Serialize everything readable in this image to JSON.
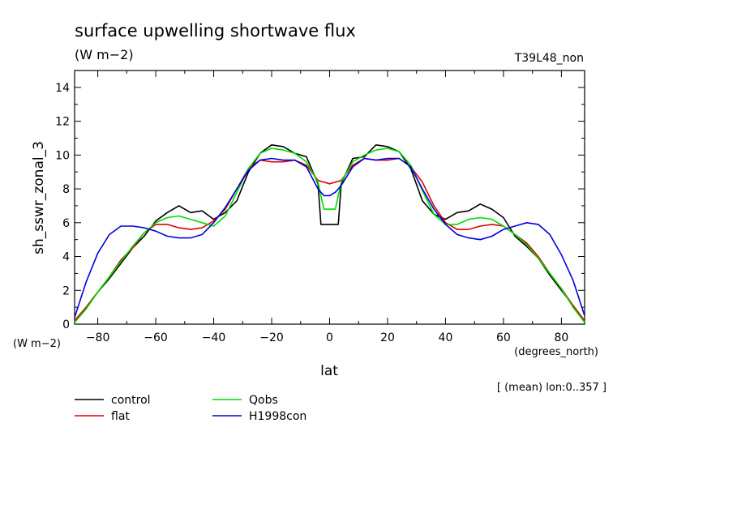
{
  "chart_data": {
    "type": "line",
    "title": "surface upwelling shortwave flux",
    "units_label": "(W m−2)",
    "run_label": "T39L48_non",
    "ylabel": "sh_sswr_zonal_3",
    "y_units_label": "(W m−2)",
    "xlabel": "lat",
    "x_units_label": "(degrees_north)",
    "note": "[ (mean) lon:0..357 ]",
    "xlim": [
      -88,
      88
    ],
    "ylim": [
      0,
      15
    ],
    "x_ticks": [
      -80,
      -60,
      -40,
      -20,
      0,
      20,
      40,
      60,
      80
    ],
    "x_tick_labels": [
      "−80",
      "−60",
      "−40",
      "−20",
      "0",
      "20",
      "40",
      "60",
      "80"
    ],
    "y_ticks": [
      0,
      2,
      4,
      6,
      8,
      10,
      12,
      14
    ],
    "y_tick_labels": [
      "0",
      "2",
      "4",
      "6",
      "8",
      "10",
      "12",
      "14"
    ],
    "grid": false,
    "legend_position": "bottom-left",
    "series": [
      {
        "name": "control",
        "color": "#000000",
        "points": [
          [
            -88,
            0.2
          ],
          [
            -84,
            1.0
          ],
          [
            -80,
            1.9
          ],
          [
            -76,
            2.7
          ],
          [
            -72,
            3.6
          ],
          [
            -68,
            4.5
          ],
          [
            -64,
            5.2
          ],
          [
            -60,
            6.1
          ],
          [
            -56,
            6.6
          ],
          [
            -52,
            7.0
          ],
          [
            -48,
            6.6
          ],
          [
            -44,
            6.7
          ],
          [
            -40,
            6.2
          ],
          [
            -36,
            6.6
          ],
          [
            -32,
            7.3
          ],
          [
            -28,
            9.0
          ],
          [
            -24,
            10.1
          ],
          [
            -20,
            10.6
          ],
          [
            -16,
            10.5
          ],
          [
            -12,
            10.1
          ],
          [
            -8,
            9.9
          ],
          [
            -4,
            8.3
          ],
          [
            -3,
            5.9
          ],
          [
            0,
            5.9
          ],
          [
            3,
            5.9
          ],
          [
            4,
            8.3
          ],
          [
            8,
            9.8
          ],
          [
            12,
            9.9
          ],
          [
            16,
            10.6
          ],
          [
            20,
            10.5
          ],
          [
            24,
            10.2
          ],
          [
            28,
            9.2
          ],
          [
            32,
            7.3
          ],
          [
            36,
            6.5
          ],
          [
            40,
            6.2
          ],
          [
            44,
            6.6
          ],
          [
            48,
            6.7
          ],
          [
            52,
            7.1
          ],
          [
            56,
            6.8
          ],
          [
            60,
            6.3
          ],
          [
            64,
            5.2
          ],
          [
            68,
            4.6
          ],
          [
            72,
            3.9
          ],
          [
            76,
            2.9
          ],
          [
            80,
            2.0
          ],
          [
            84,
            1.1
          ],
          [
            88,
            0.2
          ]
        ]
      },
      {
        "name": "flat",
        "color": "#e00000",
        "points": [
          [
            -88,
            0.2
          ],
          [
            -84,
            1.0
          ],
          [
            -80,
            1.9
          ],
          [
            -76,
            2.8
          ],
          [
            -72,
            3.8
          ],
          [
            -68,
            4.5
          ],
          [
            -64,
            5.4
          ],
          [
            -60,
            5.9
          ],
          [
            -56,
            5.9
          ],
          [
            -52,
            5.7
          ],
          [
            -48,
            5.6
          ],
          [
            -44,
            5.7
          ],
          [
            -40,
            6.1
          ],
          [
            -36,
            6.8
          ],
          [
            -32,
            8.0
          ],
          [
            -28,
            9.2
          ],
          [
            -24,
            9.7
          ],
          [
            -20,
            9.6
          ],
          [
            -16,
            9.6
          ],
          [
            -12,
            9.7
          ],
          [
            -8,
            9.4
          ],
          [
            -4,
            8.5
          ],
          [
            0,
            8.3
          ],
          [
            4,
            8.5
          ],
          [
            8,
            9.4
          ],
          [
            12,
            9.8
          ],
          [
            16,
            9.7
          ],
          [
            20,
            9.7
          ],
          [
            24,
            9.8
          ],
          [
            28,
            9.3
          ],
          [
            32,
            8.4
          ],
          [
            36,
            7.0
          ],
          [
            40,
            6.0
          ],
          [
            44,
            5.6
          ],
          [
            48,
            5.6
          ],
          [
            52,
            5.8
          ],
          [
            56,
            5.9
          ],
          [
            60,
            5.8
          ],
          [
            64,
            5.3
          ],
          [
            68,
            4.8
          ],
          [
            72,
            4.0
          ],
          [
            76,
            3.0
          ],
          [
            80,
            2.1
          ],
          [
            84,
            1.1
          ],
          [
            88,
            0.2
          ]
        ]
      },
      {
        "name": "Qobs",
        "color": "#00dd00",
        "points": [
          [
            -88,
            0.1
          ],
          [
            -84,
            0.9
          ],
          [
            -80,
            1.9
          ],
          [
            -76,
            2.8
          ],
          [
            -72,
            3.7
          ],
          [
            -68,
            4.6
          ],
          [
            -64,
            5.4
          ],
          [
            -60,
            6.0
          ],
          [
            -56,
            6.3
          ],
          [
            -52,
            6.4
          ],
          [
            -48,
            6.2
          ],
          [
            -44,
            6.0
          ],
          [
            -40,
            5.8
          ],
          [
            -36,
            6.4
          ],
          [
            -32,
            7.8
          ],
          [
            -28,
            9.2
          ],
          [
            -24,
            10.1
          ],
          [
            -20,
            10.4
          ],
          [
            -16,
            10.3
          ],
          [
            -12,
            10.1
          ],
          [
            -8,
            9.6
          ],
          [
            -4,
            8.4
          ],
          [
            -2,
            6.8
          ],
          [
            0,
            6.8
          ],
          [
            2,
            6.8
          ],
          [
            4,
            8.4
          ],
          [
            8,
            9.6
          ],
          [
            12,
            10.0
          ],
          [
            16,
            10.3
          ],
          [
            20,
            10.4
          ],
          [
            24,
            10.2
          ],
          [
            28,
            9.4
          ],
          [
            32,
            7.9
          ],
          [
            36,
            6.5
          ],
          [
            40,
            5.9
          ],
          [
            44,
            5.9
          ],
          [
            48,
            6.2
          ],
          [
            52,
            6.3
          ],
          [
            56,
            6.2
          ],
          [
            60,
            5.8
          ],
          [
            64,
            5.3
          ],
          [
            68,
            4.7
          ],
          [
            72,
            3.9
          ],
          [
            76,
            3.0
          ],
          [
            80,
            2.1
          ],
          [
            84,
            1.0
          ],
          [
            88,
            0.1
          ]
        ]
      },
      {
        "name": "H1998con",
        "color": "#0000dd",
        "points": [
          [
            -88,
            0.4
          ],
          [
            -84,
            2.5
          ],
          [
            -80,
            4.2
          ],
          [
            -76,
            5.3
          ],
          [
            -72,
            5.8
          ],
          [
            -68,
            5.8
          ],
          [
            -64,
            5.7
          ],
          [
            -60,
            5.5
          ],
          [
            -56,
            5.2
          ],
          [
            -52,
            5.1
          ],
          [
            -48,
            5.1
          ],
          [
            -44,
            5.3
          ],
          [
            -40,
            6.0
          ],
          [
            -36,
            6.9
          ],
          [
            -32,
            8.0
          ],
          [
            -28,
            9.1
          ],
          [
            -24,
            9.7
          ],
          [
            -20,
            9.8
          ],
          [
            -16,
            9.7
          ],
          [
            -12,
            9.7
          ],
          [
            -8,
            9.3
          ],
          [
            -4,
            8.0
          ],
          [
            -2,
            7.6
          ],
          [
            0,
            7.6
          ],
          [
            2,
            7.8
          ],
          [
            4,
            8.2
          ],
          [
            8,
            9.3
          ],
          [
            12,
            9.8
          ],
          [
            16,
            9.7
          ],
          [
            20,
            9.8
          ],
          [
            24,
            9.8
          ],
          [
            28,
            9.3
          ],
          [
            32,
            8.0
          ],
          [
            36,
            6.8
          ],
          [
            40,
            5.9
          ],
          [
            44,
            5.3
          ],
          [
            48,
            5.1
          ],
          [
            52,
            5.0
          ],
          [
            56,
            5.2
          ],
          [
            60,
            5.6
          ],
          [
            64,
            5.8
          ],
          [
            68,
            6.0
          ],
          [
            72,
            5.9
          ],
          [
            76,
            5.3
          ],
          [
            80,
            4.1
          ],
          [
            84,
            2.6
          ],
          [
            88,
            0.5
          ]
        ]
      }
    ]
  }
}
